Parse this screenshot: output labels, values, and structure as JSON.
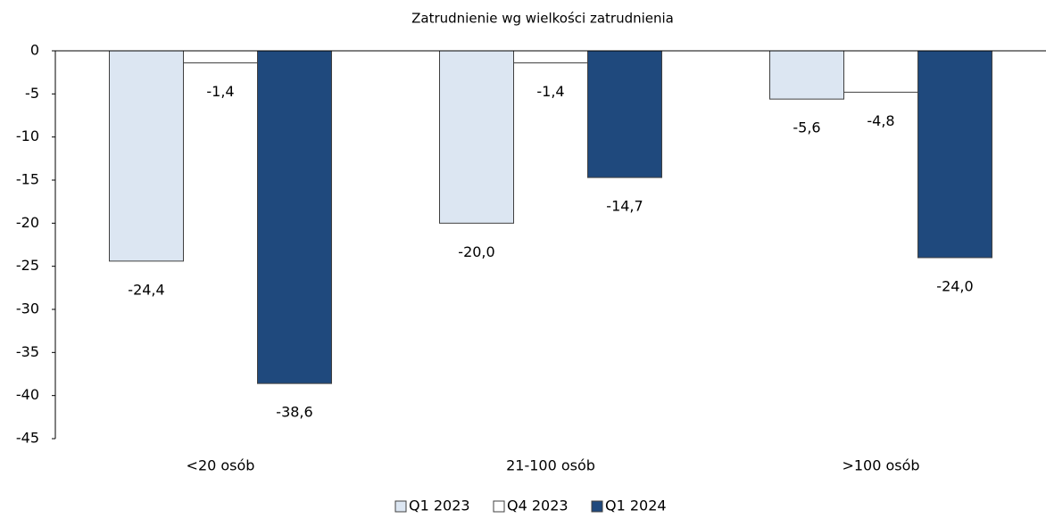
{
  "chart_data": {
    "type": "bar",
    "title": "Zatrudnienie wg wielkości zatrudnienia",
    "categories": [
      "<20 osób",
      "21-100 osób",
      ">100 osób"
    ],
    "series": [
      {
        "name": "Q1 2023",
        "color": "#dce6f2",
        "values": [
          -24.4,
          -20.0,
          -5.6
        ],
        "value_labels": [
          "-24,4",
          "-20,0",
          "-5,6"
        ]
      },
      {
        "name": "Q4 2023",
        "color": "#ffffff",
        "values": [
          -1.4,
          -1.4,
          -4.8
        ],
        "value_labels": [
          "-1,4",
          "-1,4",
          "-4,8"
        ]
      },
      {
        "name": "Q1 2024",
        "color": "#1f497d",
        "values": [
          -38.6,
          -14.7,
          -24.0
        ],
        "value_labels": [
          "-38,6",
          "-14,7",
          "-24,0"
        ]
      }
    ],
    "ylim": [
      -45,
      0
    ],
    "yticks": [
      0,
      -5,
      -10,
      -15,
      -20,
      -25,
      -30,
      -35,
      -40,
      -45
    ],
    "legend": "bottom"
  }
}
